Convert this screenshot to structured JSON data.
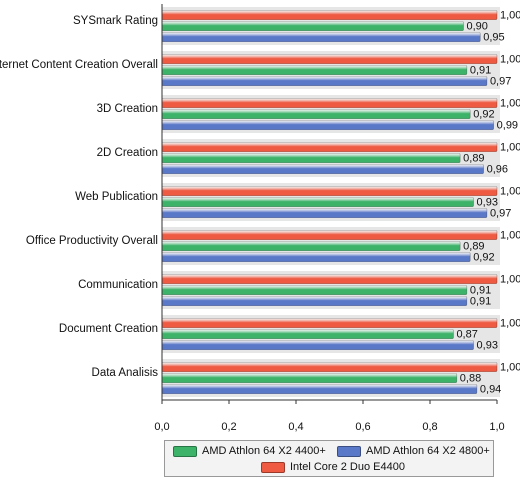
{
  "chart_data": {
    "type": "bar",
    "orientation": "horizontal",
    "categories": [
      "SYSmark Rating",
      "Internet Content Creation Overall",
      "3D Creation",
      "2D Creation",
      "Web Publication",
      "Office Productivity Overall",
      "Communication",
      "Document Creation",
      "Data Analisis"
    ],
    "series": [
      {
        "name": "Intel Core 2 Duo E4400",
        "color": "#ee5a42",
        "values": [
          1.0,
          1.0,
          1.0,
          1.0,
          1.0,
          1.0,
          1.0,
          1.0,
          1.0
        ],
        "labels": [
          "1,00",
          "1,00",
          "1,00",
          "1,00",
          "1,00",
          "1,00",
          "1,00",
          "1,00",
          "1,00"
        ]
      },
      {
        "name": "AMD Athlon 64 X2 4400+",
        "color": "#3db36a",
        "values": [
          0.9,
          0.91,
          0.92,
          0.89,
          0.93,
          0.89,
          0.91,
          0.87,
          0.88
        ],
        "labels": [
          "0,90",
          "0,91",
          "0,92",
          "0,89",
          "0,93",
          "0,89",
          "0,91",
          "0,87",
          "0,88"
        ]
      },
      {
        "name": "AMD Athlon 64 X2 4800+",
        "color": "#5a78c8",
        "values": [
          0.95,
          0.97,
          0.99,
          0.96,
          0.97,
          0.92,
          0.91,
          0.93,
          0.94
        ],
        "labels": [
          "0,95",
          "0,97",
          "0,99",
          "0,96",
          "0,97",
          "0,92",
          "0,91",
          "0,93",
          "0,94"
        ]
      }
    ],
    "xlim": [
      0,
      1
    ],
    "xticks": [
      "0,0",
      "0,2",
      "0,4",
      "0,6",
      "0,8",
      "1,0"
    ],
    "grid": false,
    "legend_position": "bottom"
  },
  "legend": {
    "items": [
      {
        "label": "AMD Athlon 64 X2 4400+",
        "color": "#3db36a"
      },
      {
        "label": "AMD Athlon 64 X2 4800+",
        "color": "#5a78c8"
      },
      {
        "label": "Intel Core 2 Duo E4400",
        "color": "#ee5a42"
      }
    ]
  }
}
